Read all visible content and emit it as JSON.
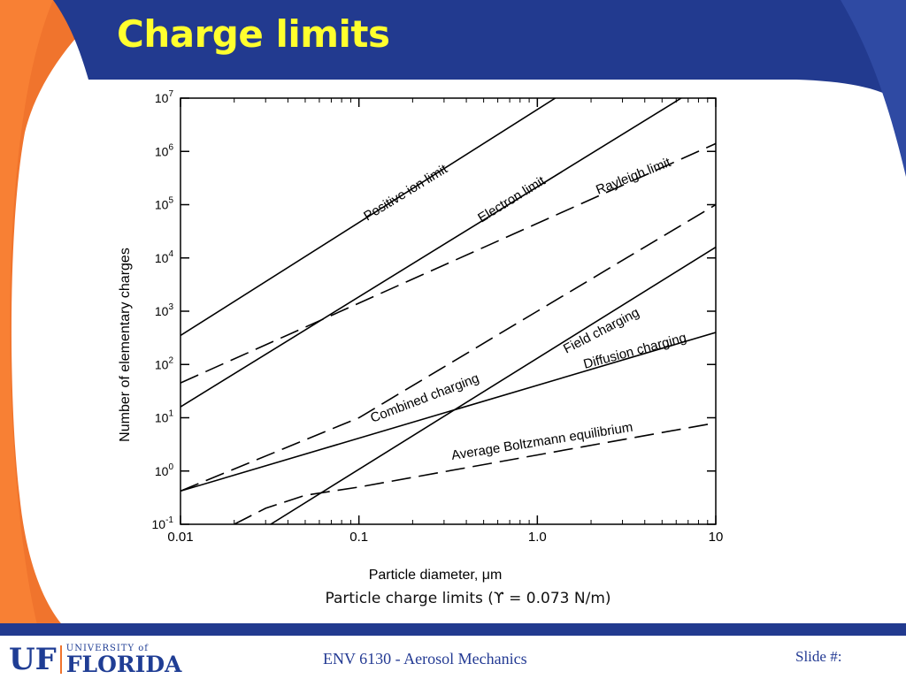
{
  "slide": {
    "title": "Charge limits",
    "caption": "Particle charge limits (ϒ = 0.073 N/m)",
    "course": "ENV 6130 - Aerosol Mechanics",
    "slide_number_label": "Slide #:",
    "logo": {
      "uf": "UF",
      "university_of": "UNIVERSITY of",
      "florida": "FLORIDA"
    },
    "colors": {
      "header_blue": "#223a8f",
      "title_yellow": "#ffff2e",
      "accent_orange": "#f0742d"
    }
  },
  "chart_data": {
    "type": "line",
    "x_scale": "log",
    "y_scale": "log",
    "xlabel": "Particle diameter, μm",
    "ylabel": "Number of elementary charges",
    "xlim": [
      0.01,
      10
    ],
    "ylim": [
      0.1,
      10000000
    ],
    "x_ticks": [
      0.01,
      0.1,
      1.0,
      10
    ],
    "x_tick_labels": [
      "0.01",
      "0.1",
      "1.0",
      "10"
    ],
    "y_ticks": [
      0.1,
      1,
      10,
      100,
      1000,
      10000,
      100000,
      1000000,
      10000000
    ],
    "y_tick_labels": [
      {
        "base": "10",
        "exp": "-1"
      },
      {
        "base": "10",
        "exp": "0"
      },
      {
        "base": "10",
        "exp": "1"
      },
      {
        "base": "10",
        "exp": "2"
      },
      {
        "base": "10",
        "exp": "3"
      },
      {
        "base": "10",
        "exp": "4"
      },
      {
        "base": "10",
        "exp": "5"
      },
      {
        "base": "10",
        "exp": "6"
      },
      {
        "base": "10",
        "exp": "7"
      }
    ],
    "series": [
      {
        "name": "Positive ion limit",
        "style": "solid",
        "x": [
          0.01,
          1.26
        ],
        "y": [
          350,
          10000000
        ]
      },
      {
        "name": "Electron limit",
        "style": "solid",
        "x": [
          0.01,
          6.4
        ],
        "y": [
          16,
          10000000
        ]
      },
      {
        "name": "Rayleigh limit",
        "style": "dashed",
        "x": [
          0.01,
          10
        ],
        "y": [
          45,
          1400000
        ]
      },
      {
        "name": "Field charging",
        "style": "solid",
        "x": [
          0.032,
          10
        ],
        "y": [
          0.1,
          16000
        ]
      },
      {
        "name": "Diffusion charging",
        "style": "solid",
        "x": [
          0.01,
          10
        ],
        "y": [
          0.42,
          400
        ]
      },
      {
        "name": "Combined charging",
        "style": "dashed",
        "x": [
          0.01,
          0.1,
          1,
          10
        ],
        "y": [
          0.42,
          10,
          1000,
          100000
        ]
      },
      {
        "name": "Average Boltzmann equilibrium",
        "style": "dashed",
        "x": [
          0.02,
          0.03,
          0.05,
          0.1,
          1,
          10
        ],
        "y": [
          0.1,
          0.2,
          0.35,
          0.5,
          2,
          8
        ]
      }
    ]
  }
}
